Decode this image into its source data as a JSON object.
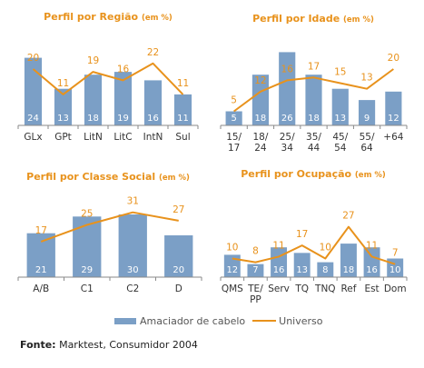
{
  "legend": {
    "bar_label": "Amaciador de cabelo",
    "line_label": "Universo"
  },
  "source": {
    "prefix": "Fonte:",
    "text": "Marktest, Consumidor 2004"
  },
  "colors": {
    "bar": "#7b9fc6",
    "line": "#e8921c",
    "title": "#e8921c"
  },
  "chart_data": [
    {
      "type": "bar",
      "title": "Perfil por Região",
      "title_unit": "(em %)",
      "categories": [
        [
          "GLx"
        ],
        [
          "GPt"
        ],
        [
          "LitN"
        ],
        [
          "LitC"
        ],
        [
          "IntN"
        ],
        [
          "Sul"
        ]
      ],
      "series": [
        {
          "name": "Amaciador de cabelo",
          "type": "bar",
          "values": [
            24,
            13,
            18,
            19,
            16,
            11
          ]
        },
        {
          "name": "Universo",
          "type": "line",
          "values": [
            20,
            11,
            19,
            16,
            22,
            11
          ]
        }
      ],
      "ylim": [
        0,
        30
      ]
    },
    {
      "type": "bar",
      "title": "Perfil por Idade",
      "title_unit": "(em %)",
      "categories": [
        [
          "15/",
          "17"
        ],
        [
          "18/",
          "24"
        ],
        [
          "25/",
          "34"
        ],
        [
          "35/",
          "44"
        ],
        [
          "45/",
          "54"
        ],
        [
          "55/",
          "64"
        ],
        [
          "+64"
        ]
      ],
      "series": [
        {
          "name": "Amaciador de cabelo",
          "type": "bar",
          "values": [
            5,
            18,
            26,
            18,
            13,
            9,
            12
          ]
        },
        {
          "name": "Universo",
          "type": "line",
          "values": [
            5,
            12,
            16,
            17,
            15,
            13,
            20
          ]
        }
      ],
      "ylim": [
        0,
        30
      ]
    },
    {
      "type": "bar",
      "title": "Perfil por Classe Social",
      "title_unit": "(em %)",
      "categories": [
        [
          "A/B"
        ],
        [
          "C1"
        ],
        [
          "C2"
        ],
        [
          "D"
        ]
      ],
      "series": [
        {
          "name": "Amaciador de cabelo",
          "type": "bar",
          "values": [
            21,
            29,
            30,
            20
          ]
        },
        {
          "name": "Universo",
          "type": "line",
          "values": [
            17,
            25,
            31,
            27
          ]
        }
      ],
      "ylim": [
        0,
        40
      ]
    },
    {
      "type": "bar",
      "title": "Perfil por Ocupação",
      "title_unit": "(em %)",
      "categories": [
        [
          "QMS"
        ],
        [
          "TE/",
          "PP"
        ],
        [
          "Serv"
        ],
        [
          "TQ"
        ],
        [
          "TNQ"
        ],
        [
          "Ref"
        ],
        [
          "Est"
        ],
        [
          "Dom"
        ]
      ],
      "series": [
        {
          "name": "Amaciador de cabelo",
          "type": "bar",
          "values": [
            12,
            7,
            16,
            13,
            8,
            18,
            16,
            10
          ]
        },
        {
          "name": "Universo",
          "type": "line",
          "values": [
            10,
            8,
            11,
            17,
            10,
            27,
            11,
            7
          ]
        }
      ],
      "ylim": [
        0,
        30
      ]
    }
  ]
}
